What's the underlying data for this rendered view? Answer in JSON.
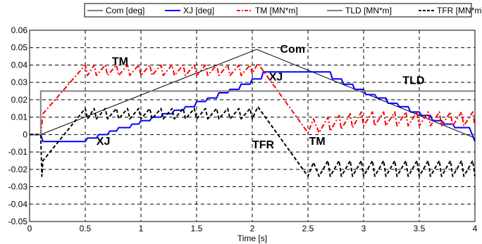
{
  "chart_data": {
    "type": "line",
    "xlabel": "Time [s]",
    "ylabel": "",
    "xlim": [
      0,
      4
    ],
    "ylim": [
      -0.05,
      0.06
    ],
    "xticks": [
      "0",
      "0.5",
      "1",
      "1.5",
      "2",
      "2.5",
      "3",
      "3.5",
      "4"
    ],
    "yticks": [
      "-0.05",
      "-0.04",
      "-0.03",
      "-0.02",
      "-0.01",
      "0",
      "0.01",
      "0.02",
      "0.03",
      "0.04",
      "0.05",
      "0.06"
    ],
    "grid": true,
    "legend_position": "top",
    "series": [
      {
        "name": "Com [deg]",
        "color": "#000000",
        "style": "solid",
        "x": [
          0,
          0.1,
          2.04,
          4.0
        ],
        "y": [
          0,
          0,
          0.049,
          -0.002
        ]
      },
      {
        "name": "XJ [deg]",
        "color": "#0000ff",
        "style": "solid",
        "x": [
          0,
          0.1,
          0.12,
          0.5,
          0.52,
          0.6,
          0.62,
          0.7,
          0.72,
          0.78,
          0.8,
          0.9,
          0.92,
          0.98,
          1.0,
          1.08,
          1.1,
          1.18,
          1.2,
          1.28,
          1.3,
          1.38,
          1.4,
          1.48,
          1.5,
          1.58,
          1.6,
          1.68,
          1.7,
          1.78,
          1.8,
          1.88,
          1.9,
          1.98,
          2.0,
          2.08,
          2.1,
          2.7,
          2.72,
          2.8,
          2.82,
          2.9,
          2.92,
          3.0,
          3.02,
          3.1,
          3.12,
          3.2,
          3.22,
          3.3,
          3.32,
          3.4,
          3.42,
          3.5,
          3.52,
          3.6,
          3.62,
          3.7,
          3.72,
          3.8,
          3.82,
          3.95,
          4.0
        ],
        "y": [
          0,
          0,
          -0.004,
          -0.004,
          -0.002,
          -0.002,
          0.0,
          0.0,
          0.002,
          0.002,
          0.004,
          0.004,
          0.006,
          0.006,
          0.008,
          0.008,
          0.01,
          0.01,
          0.012,
          0.012,
          0.014,
          0.014,
          0.016,
          0.016,
          0.019,
          0.019,
          0.021,
          0.021,
          0.024,
          0.024,
          0.026,
          0.026,
          0.029,
          0.029,
          0.032,
          0.032,
          0.036,
          0.036,
          0.032,
          0.032,
          0.029,
          0.029,
          0.026,
          0.026,
          0.023,
          0.023,
          0.021,
          0.021,
          0.018,
          0.018,
          0.016,
          0.016,
          0.013,
          0.013,
          0.011,
          0.011,
          0.008,
          0.008,
          0.006,
          0.006,
          0.004,
          0.004,
          -0.004
        ]
      },
      {
        "name": "TM [MN*m]",
        "color": "#ff0000",
        "style": "dashdot",
        "x": [
          0,
          0.1,
          0.12,
          0.5,
          0.52,
          0.58,
          0.6,
          0.68,
          0.7,
          0.78,
          0.8,
          0.88,
          0.9,
          0.98,
          1.0,
          1.08,
          1.1,
          1.18,
          1.2,
          1.28,
          1.3,
          1.38,
          1.4,
          1.48,
          1.5,
          1.58,
          1.6,
          1.68,
          1.7,
          1.78,
          1.8,
          1.88,
          1.9,
          1.98,
          2.0,
          2.05,
          2.5,
          2.55,
          2.6,
          2.68,
          2.7,
          2.78,
          2.8,
          2.88,
          2.9,
          2.98,
          3.0,
          3.08,
          3.1,
          3.18,
          3.2,
          3.28,
          3.3,
          3.38,
          3.4,
          3.48,
          3.5,
          3.58,
          3.6,
          3.68,
          3.7,
          3.78,
          3.8,
          3.88,
          3.9,
          3.98,
          4.0
        ],
        "y": [
          0,
          0,
          0.012,
          0.04,
          0.034,
          0.04,
          0.034,
          0.04,
          0.034,
          0.04,
          0.034,
          0.04,
          0.034,
          0.04,
          0.034,
          0.04,
          0.034,
          0.04,
          0.034,
          0.04,
          0.034,
          0.04,
          0.034,
          0.04,
          0.034,
          0.04,
          0.034,
          0.04,
          0.034,
          0.04,
          0.034,
          0.04,
          0.034,
          0.04,
          0.035,
          0.041,
          0.001,
          0.009,
          0.001,
          0.01,
          0.002,
          0.011,
          0.003,
          0.012,
          0.004,
          0.013,
          0.005,
          0.013,
          0.005,
          0.013,
          0.005,
          0.013,
          0.005,
          0.013,
          0.005,
          0.013,
          0.005,
          0.013,
          0.005,
          0.013,
          0.005,
          0.013,
          0.005,
          0.013,
          0.005,
          0.013,
          0.005
        ]
      },
      {
        "name": "TLD [MN*m]",
        "color": "#808080",
        "style": "solid",
        "x": [
          0,
          0.1,
          0.1,
          4.0
        ],
        "y": [
          0,
          0,
          0.025,
          0.025
        ]
      },
      {
        "name": "TFR [MN*m]",
        "color": "#000000",
        "style": "dashed",
        "x": [
          0,
          0.1,
          0.11,
          0.12,
          0.5,
          0.52,
          0.58,
          0.6,
          0.68,
          0.7,
          0.78,
          0.8,
          0.88,
          0.9,
          0.98,
          1.0,
          1.08,
          1.1,
          1.18,
          1.2,
          1.28,
          1.3,
          1.38,
          1.4,
          1.48,
          1.5,
          1.58,
          1.6,
          1.68,
          1.7,
          1.78,
          1.8,
          1.88,
          1.9,
          1.98,
          2.0,
          2.05,
          2.5,
          2.55,
          2.6,
          2.68,
          2.7,
          2.78,
          2.8,
          2.88,
          2.9,
          2.98,
          3.0,
          3.08,
          3.1,
          3.18,
          3.2,
          3.28,
          3.3,
          3.38,
          3.4,
          3.48,
          3.5,
          3.58,
          3.6,
          3.68,
          3.7,
          3.78,
          3.8,
          3.88,
          3.9,
          3.98,
          4.0
        ],
        "y": [
          0,
          0,
          -0.024,
          -0.015,
          0.015,
          0.009,
          0.015,
          0.009,
          0.015,
          0.009,
          0.015,
          0.009,
          0.015,
          0.009,
          0.015,
          0.009,
          0.015,
          0.009,
          0.015,
          0.009,
          0.015,
          0.009,
          0.015,
          0.009,
          0.015,
          0.009,
          0.015,
          0.009,
          0.015,
          0.009,
          0.015,
          0.009,
          0.015,
          0.009,
          0.015,
          0.009,
          0.016,
          -0.024,
          -0.016,
          -0.024,
          -0.015,
          -0.024,
          -0.015,
          -0.024,
          -0.015,
          -0.024,
          -0.015,
          -0.024,
          -0.015,
          -0.024,
          -0.015,
          -0.024,
          -0.015,
          -0.024,
          -0.015,
          -0.024,
          -0.015,
          -0.024,
          -0.015,
          -0.024,
          -0.015,
          -0.024,
          -0.015,
          -0.024,
          -0.015,
          -0.024,
          -0.015,
          -0.024
        ]
      }
    ],
    "annotations": [
      {
        "text": "TM",
        "x": 0.74,
        "y": 0.04
      },
      {
        "text": "Com",
        "x": 2.25,
        "y": 0.047
      },
      {
        "text": "XJ",
        "x": 2.15,
        "y": 0.031
      },
      {
        "text": "TLD",
        "x": 3.35,
        "y": 0.029
      },
      {
        "text": "XJ",
        "x": 0.6,
        "y": -0.006
      },
      {
        "text": "TFR",
        "x": 2.0,
        "y": -0.008
      },
      {
        "text": "TM",
        "x": 2.51,
        "y": -0.006
      }
    ]
  }
}
